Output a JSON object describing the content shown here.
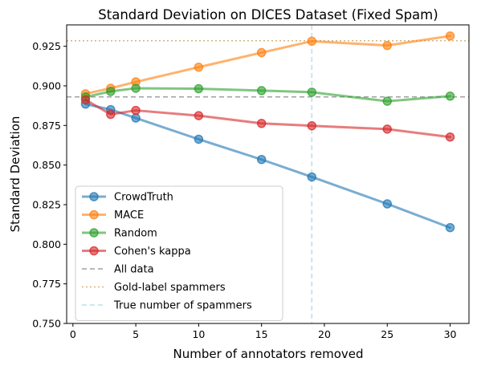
{
  "chart_data": {
    "type": "line",
    "title": "Standard Deviation on DICES Dataset (Fixed Spam)",
    "xlabel": "Number of annotators removed",
    "ylabel": "Standard Deviation",
    "xlim": [
      -0.5,
      31.5
    ],
    "ylim": [
      0.75,
      0.9385
    ],
    "x_ticks": [
      0,
      5,
      10,
      15,
      20,
      25,
      30
    ],
    "y_ticks": [
      0.75,
      0.775,
      0.8,
      0.825,
      0.85,
      0.875,
      0.9,
      0.925
    ],
    "x_tick_labels": [
      "0",
      "5",
      "10",
      "15",
      "20",
      "25",
      "30"
    ],
    "y_tick_labels": [
      "0.750",
      "0.775",
      "0.800",
      "0.825",
      "0.850",
      "0.875",
      "0.900",
      "0.925"
    ],
    "grid": false,
    "legend_position": "lower-left",
    "x": [
      1,
      3,
      5,
      10,
      15,
      19,
      25,
      30
    ],
    "series": [
      {
        "name": "CrowdTruth",
        "color": "#1f77b4",
        "values": [
          0.8885,
          0.885,
          0.8797,
          0.8663,
          0.8535,
          0.8425,
          0.8255,
          0.8105
        ]
      },
      {
        "name": "MACE",
        "color": "#ff7f0e",
        "values": [
          0.895,
          0.8985,
          0.9025,
          0.9118,
          0.921,
          0.9282,
          0.9255,
          0.9315
        ]
      },
      {
        "name": "Random",
        "color": "#2ca02c",
        "values": [
          0.893,
          0.8965,
          0.8985,
          0.8982,
          0.897,
          0.896,
          0.8903,
          0.8935
        ]
      },
      {
        "name": "Cohen's kappa",
        "color": "#d62728",
        "values": [
          0.8912,
          0.882,
          0.8845,
          0.8812,
          0.8763,
          0.8748,
          0.8727,
          0.8677
        ]
      }
    ],
    "reference_lines": [
      {
        "name": "All data",
        "orientation": "horizontal",
        "value": 0.893,
        "color": "#a0a0a0",
        "style": "dashed"
      },
      {
        "name": "Gold-label spammers",
        "orientation": "horizontal",
        "value": 0.9285,
        "color": "#d4b483",
        "style": "dotted"
      },
      {
        "name": "True number of spammers",
        "orientation": "vertical",
        "value": 19,
        "color": "#b8e0ea",
        "style": "dashed"
      }
    ]
  }
}
